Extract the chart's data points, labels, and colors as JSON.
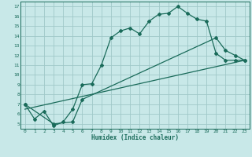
{
  "xlabel": "Humidex (Indice chaleur)",
  "bg_color": "#c8e8e8",
  "grid_color": "#a0c8c8",
  "line_color": "#1a6b5a",
  "xlim": [
    -0.5,
    23.5
  ],
  "ylim": [
    4.5,
    17.5
  ],
  "xticks": [
    0,
    1,
    2,
    3,
    4,
    5,
    6,
    7,
    8,
    9,
    10,
    11,
    12,
    13,
    14,
    15,
    16,
    17,
    18,
    19,
    20,
    21,
    22,
    23
  ],
  "yticks": [
    5,
    6,
    7,
    8,
    9,
    10,
    11,
    12,
    13,
    14,
    15,
    16,
    17
  ],
  "line1_x": [
    0,
    1,
    2,
    3,
    4,
    5,
    6,
    7,
    8,
    9,
    10,
    11,
    12,
    13,
    14,
    15,
    16,
    17,
    18,
    19,
    20,
    21,
    22,
    23
  ],
  "line1_y": [
    7.0,
    5.5,
    6.3,
    4.8,
    5.2,
    6.5,
    9.0,
    9.1,
    11.0,
    13.8,
    14.5,
    14.8,
    14.2,
    15.5,
    16.2,
    16.3,
    17.0,
    16.3,
    15.7,
    15.5,
    12.2,
    11.5,
    11.5,
    11.5
  ],
  "line2_x": [
    0,
    3,
    5,
    6,
    20,
    21,
    22,
    23
  ],
  "line2_y": [
    7.0,
    5.0,
    5.2,
    7.5,
    13.8,
    12.5,
    12.0,
    11.5
  ],
  "line3_x": [
    0,
    23
  ],
  "line3_y": [
    6.5,
    11.5
  ]
}
